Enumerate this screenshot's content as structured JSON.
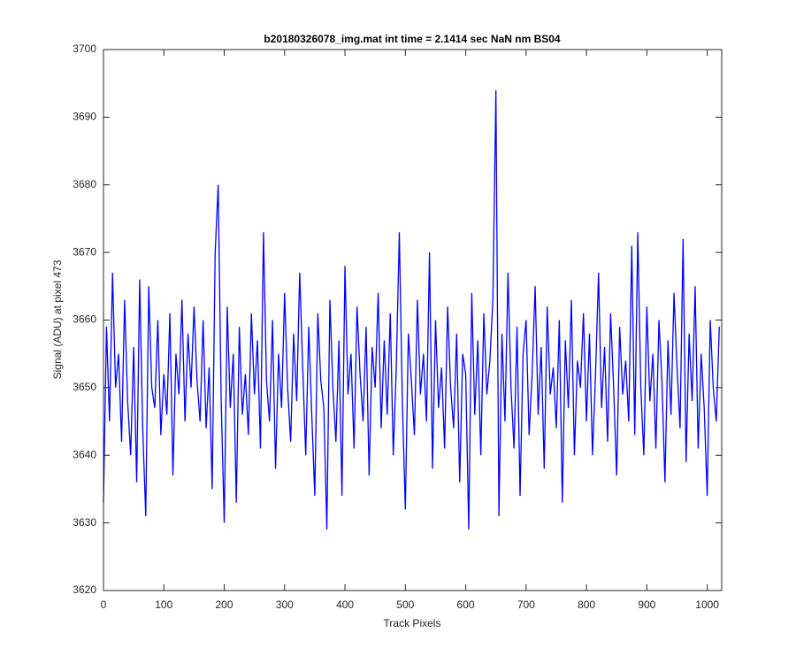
{
  "chart_data": {
    "type": "line",
    "title": "b20180326078_img.mat int time = 2.1414 sec  NaN nm BS04",
    "x_label": "Track Pixels",
    "y_label": "Signal (ADU) at pixel 473",
    "x": [
      0,
      5,
      10,
      15,
      20,
      25,
      30,
      35,
      40,
      45,
      50,
      55,
      60,
      65,
      70,
      75,
      80,
      85,
      90,
      95,
      100,
      105,
      110,
      115,
      120,
      125,
      130,
      135,
      140,
      145,
      150,
      155,
      160,
      165,
      170,
      175,
      180,
      185,
      190,
      195,
      200,
      205,
      210,
      215,
      220,
      225,
      230,
      235,
      240,
      245,
      250,
      255,
      260,
      265,
      270,
      275,
      280,
      285,
      290,
      295,
      300,
      305,
      310,
      315,
      320,
      325,
      330,
      335,
      340,
      345,
      350,
      355,
      360,
      365,
      370,
      375,
      380,
      385,
      390,
      395,
      400,
      405,
      410,
      415,
      420,
      425,
      430,
      435,
      440,
      445,
      450,
      455,
      460,
      465,
      470,
      475,
      480,
      485,
      490,
      495,
      500,
      505,
      510,
      515,
      520,
      525,
      530,
      535,
      540,
      545,
      550,
      555,
      560,
      565,
      570,
      575,
      580,
      585,
      590,
      595,
      600,
      605,
      610,
      615,
      620,
      625,
      630,
      635,
      640,
      645,
      650,
      655,
      660,
      665,
      670,
      675,
      680,
      685,
      690,
      695,
      700,
      705,
      710,
      715,
      720,
      725,
      730,
      735,
      740,
      745,
      750,
      755,
      760,
      765,
      770,
      775,
      780,
      785,
      790,
      795,
      800,
      805,
      810,
      815,
      820,
      825,
      830,
      835,
      840,
      845,
      850,
      855,
      860,
      865,
      870,
      875,
      880,
      885,
      890,
      895,
      900,
      905,
      910,
      915,
      920,
      925,
      930,
      935,
      940,
      945,
      950,
      955,
      960,
      965,
      970,
      975,
      980,
      985,
      990,
      995,
      1000,
      1005,
      1010,
      1015,
      1020
    ],
    "series": [
      {
        "name": "signal",
        "color": "#0000ff",
        "values": [
          3633,
          3659,
          3645,
          3667,
          3650,
          3655,
          3642,
          3663,
          3648,
          3640,
          3656,
          3636,
          3666,
          3644,
          3631,
          3665,
          3650,
          3647,
          3660,
          3643,
          3652,
          3646,
          3661,
          3637,
          3655,
          3649,
          3663,
          3645,
          3658,
          3650,
          3662,
          3651,
          3645,
          3660,
          3644,
          3653,
          3635,
          3670,
          3680,
          3648,
          3630,
          3662,
          3647,
          3655,
          3633,
          3659,
          3646,
          3652,
          3643,
          3661,
          3649,
          3657,
          3641,
          3673,
          3651,
          3645,
          3660,
          3638,
          3655,
          3647,
          3664,
          3650,
          3642,
          3658,
          3648,
          3667,
          3653,
          3640,
          3659,
          3646,
          3634,
          3661,
          3651,
          3647,
          3629,
          3663,
          3650,
          3642,
          3657,
          3634,
          3668,
          3649,
          3655,
          3641,
          3662,
          3652,
          3645,
          3659,
          3637,
          3656,
          3650,
          3664,
          3644,
          3657,
          3646,
          3661,
          3640,
          3653,
          3673,
          3648,
          3632,
          3658,
          3651,
          3643,
          3663,
          3649,
          3655,
          3645,
          3670,
          3638,
          3660,
          3647,
          3653,
          3641,
          3662,
          3650,
          3644,
          3658,
          3636,
          3655,
          3652,
          3629,
          3664,
          3646,
          3657,
          3640,
          3661,
          3649,
          3654,
          3663,
          3694,
          3631,
          3658,
          3645,
          3667,
          3650,
          3641,
          3659,
          3634,
          3655,
          3660,
          3643,
          3652,
          3665,
          3646,
          3656,
          3638,
          3662,
          3649,
          3653,
          3644,
          3660,
          3633,
          3657,
          3647,
          3663,
          3640,
          3654,
          3650,
          3661,
          3645,
          3658,
          3640,
          3652,
          3667,
          3647,
          3656,
          3642,
          3661,
          3650,
          3637,
          3659,
          3649,
          3654,
          3645,
          3671,
          3643,
          3673,
          3650,
          3640,
          3662,
          3648,
          3655,
          3641,
          3660,
          3651,
          3636,
          3657,
          3646,
          3664,
          3653,
          3644,
          3672,
          3639,
          3658,
          3648,
          3665,
          3641,
          3655,
          3647,
          3634,
          3660,
          3650,
          3645,
          3659
        ]
      }
    ],
    "xlim": [
      0,
      1024
    ],
    "xticks": [
      0,
      100,
      200,
      300,
      400,
      500,
      600,
      700,
      800,
      900,
      1000
    ],
    "ylim": [
      3620,
      3700
    ],
    "yticks": [
      3620,
      3630,
      3640,
      3650,
      3660,
      3670,
      3680,
      3690,
      3700
    ]
  }
}
